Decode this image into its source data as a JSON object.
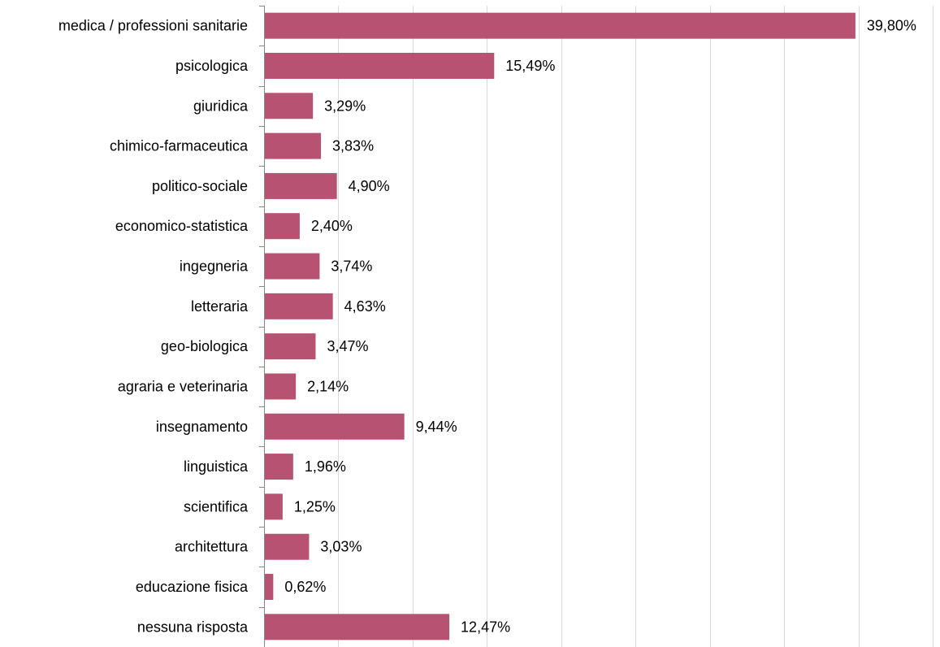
{
  "chart_data": {
    "type": "bar",
    "orientation": "horizontal",
    "categories": [
      "medica / professioni sanitarie",
      "psicologica",
      "giuridica",
      "chimico-farmaceutica",
      "politico-sociale",
      "economico-statistica",
      "ingegneria",
      "letteraria",
      "geo-biologica",
      "agraria e veterinaria",
      "insegnamento",
      "linguistica",
      "scientifica",
      "architettura",
      "educazione fisica",
      "nessuna risposta"
    ],
    "values": [
      39.8,
      15.49,
      3.29,
      3.83,
      4.9,
      2.4,
      3.74,
      4.63,
      3.47,
      2.14,
      9.44,
      1.96,
      1.25,
      3.03,
      0.62,
      12.47
    ],
    "value_labels": [
      "39,80%",
      "15,49%",
      "3,29%",
      "3,83%",
      "4,90%",
      "2,40%",
      "3,74%",
      "4,63%",
      "3,47%",
      "2,14%",
      "9,44%",
      "1,96%",
      "1,25%",
      "3,03%",
      "0,62%",
      "12,47%"
    ],
    "xlim": [
      0,
      45
    ],
    "x_gridline_step": 5,
    "grid": true,
    "show_x_tick_labels": false,
    "bar_color": "#b85272",
    "grid_color": "#d9d9d9",
    "axis_color": "#868686",
    "title": "",
    "xlabel": "",
    "ylabel": ""
  }
}
